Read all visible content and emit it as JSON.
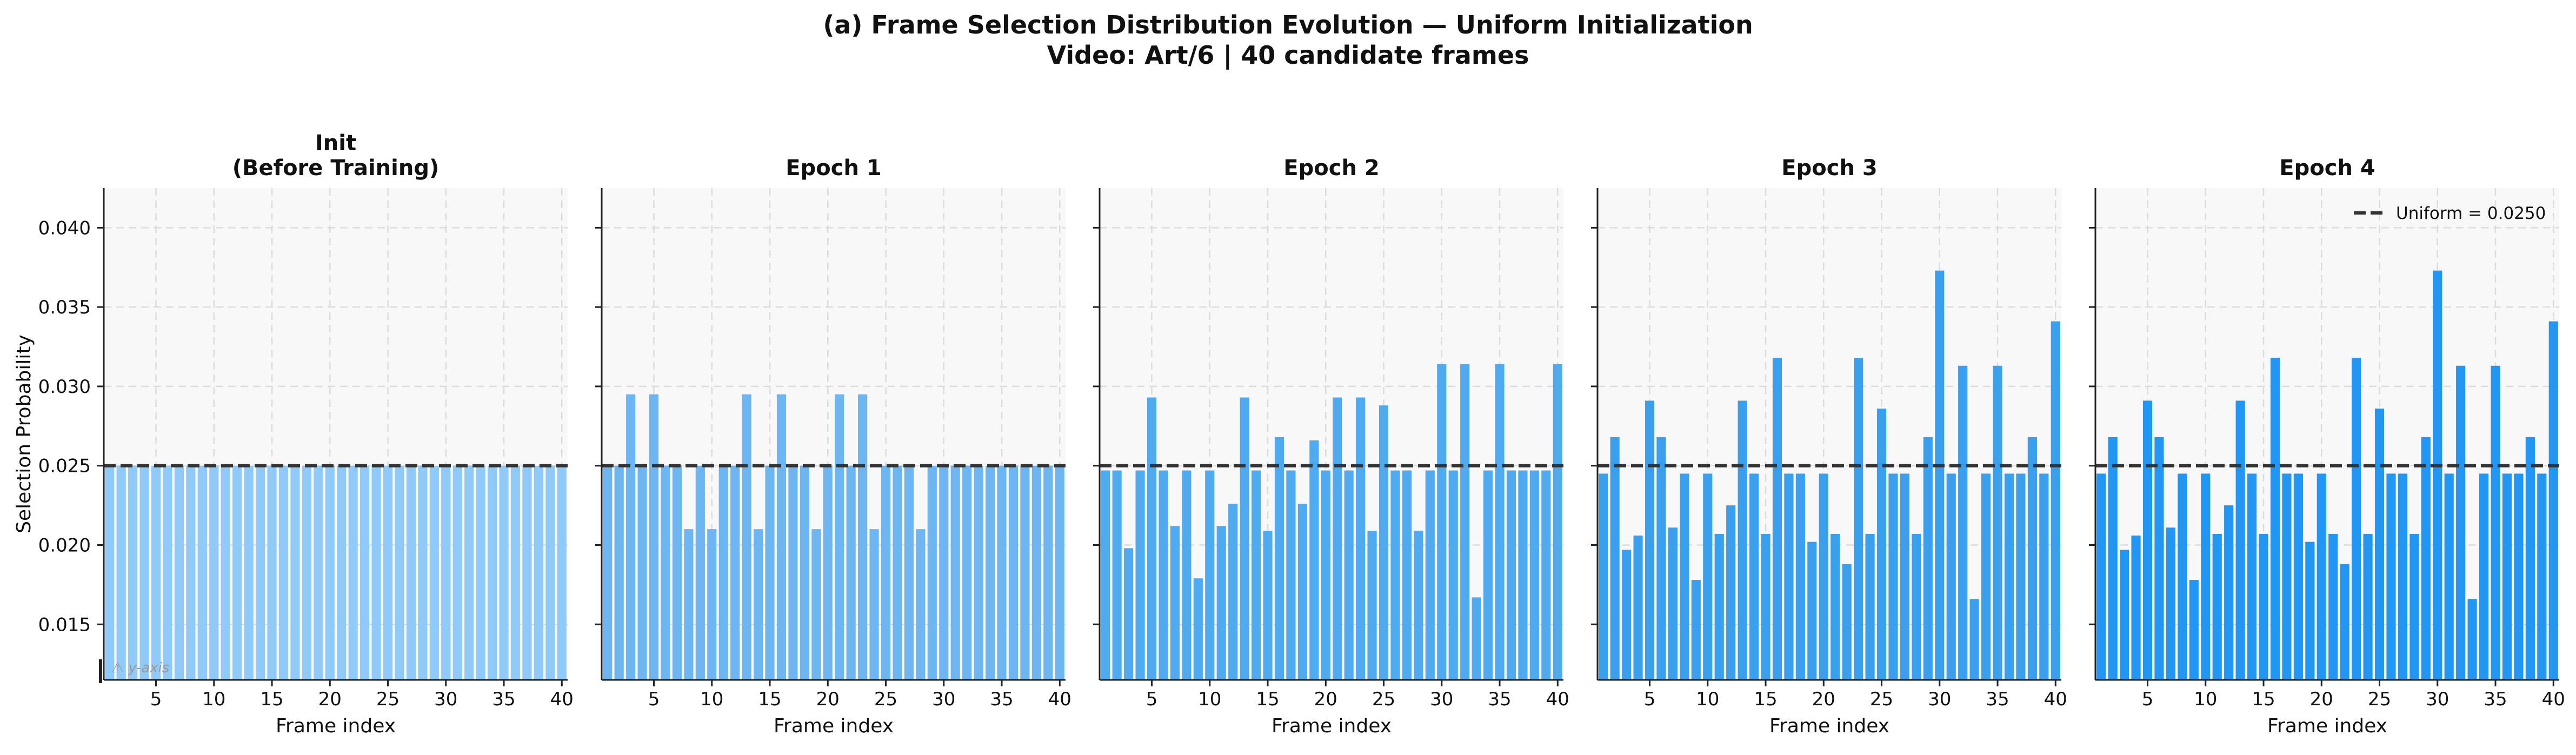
{
  "figure": {
    "title_line1": "(a) Frame Selection Distribution Evolution — Uniform Initialization",
    "title_line2": "Video: Art/6  |  40 candidate frames"
  },
  "chart_data": [
    {
      "type": "bar",
      "title": "Init\n(Before Training)",
      "xlabel": "Frame index",
      "ylabel": "Selection Probability",
      "ylim": [
        0.0115,
        0.0425
      ],
      "xlim": [
        0.5,
        40.5
      ],
      "x_ticks": [
        5,
        10,
        15,
        20,
        25,
        30,
        35,
        40
      ],
      "y_ticks": [
        0.015,
        0.02,
        0.025,
        0.03,
        0.035,
        0.04
      ],
      "y_tick_labels": [
        "0.015",
        "0.020",
        "0.025",
        "0.030",
        "0.035",
        "0.040"
      ],
      "grid": true,
      "reference_line": {
        "value": 0.025,
        "style": "dashed"
      },
      "annotation": "⚠ y-axis",
      "bar_color": "#90caf9",
      "categories": [
        1,
        2,
        3,
        4,
        5,
        6,
        7,
        8,
        9,
        10,
        11,
        12,
        13,
        14,
        15,
        16,
        17,
        18,
        19,
        20,
        21,
        22,
        23,
        24,
        25,
        26,
        27,
        28,
        29,
        30,
        31,
        32,
        33,
        34,
        35,
        36,
        37,
        38,
        39,
        40
      ],
      "values": [
        0.025,
        0.025,
        0.025,
        0.025,
        0.025,
        0.025,
        0.025,
        0.025,
        0.025,
        0.025,
        0.025,
        0.025,
        0.025,
        0.025,
        0.025,
        0.025,
        0.025,
        0.025,
        0.025,
        0.025,
        0.025,
        0.025,
        0.025,
        0.025,
        0.025,
        0.025,
        0.025,
        0.025,
        0.025,
        0.025,
        0.025,
        0.025,
        0.025,
        0.025,
        0.025,
        0.025,
        0.025,
        0.025,
        0.025,
        0.025
      ]
    },
    {
      "type": "bar",
      "title": "Epoch 1",
      "xlabel": "Frame index",
      "ylim": [
        0.0115,
        0.0425
      ],
      "xlim": [
        0.5,
        40.5
      ],
      "x_ticks": [
        5,
        10,
        15,
        20,
        25,
        30,
        35,
        40
      ],
      "grid": true,
      "reference_line": {
        "value": 0.025,
        "style": "dashed"
      },
      "bar_color": "#6db6f2",
      "categories": [
        1,
        2,
        3,
        4,
        5,
        6,
        7,
        8,
        9,
        10,
        11,
        12,
        13,
        14,
        15,
        16,
        17,
        18,
        19,
        20,
        21,
        22,
        23,
        24,
        25,
        26,
        27,
        28,
        29,
        30,
        31,
        32,
        33,
        34,
        35,
        36,
        37,
        38,
        39,
        40
      ],
      "values": [
        0.025,
        0.025,
        0.0295,
        0.025,
        0.0295,
        0.025,
        0.025,
        0.021,
        0.025,
        0.021,
        0.025,
        0.025,
        0.0295,
        0.021,
        0.025,
        0.0295,
        0.025,
        0.025,
        0.021,
        0.025,
        0.0295,
        0.025,
        0.0295,
        0.021,
        0.025,
        0.025,
        0.025,
        0.021,
        0.025,
        0.025,
        0.025,
        0.025,
        0.025,
        0.025,
        0.025,
        0.025,
        0.025,
        0.025,
        0.025,
        0.025
      ]
    },
    {
      "type": "bar",
      "title": "Epoch 2",
      "xlabel": "Frame index",
      "ylim": [
        0.0115,
        0.0425
      ],
      "xlim": [
        0.5,
        40.5
      ],
      "x_ticks": [
        5,
        10,
        15,
        20,
        25,
        30,
        35,
        40
      ],
      "grid": true,
      "reference_line": {
        "value": 0.025,
        "style": "dashed"
      },
      "bar_color": "#50aaf0",
      "categories": [
        1,
        2,
        3,
        4,
        5,
        6,
        7,
        8,
        9,
        10,
        11,
        12,
        13,
        14,
        15,
        16,
        17,
        18,
        19,
        20,
        21,
        22,
        23,
        24,
        25,
        26,
        27,
        28,
        29,
        30,
        31,
        32,
        33,
        34,
        35,
        36,
        37,
        38,
        39,
        40
      ],
      "values": [
        0.0247,
        0.0247,
        0.0198,
        0.0247,
        0.0293,
        0.0247,
        0.0212,
        0.0247,
        0.0179,
        0.0247,
        0.0212,
        0.0226,
        0.0293,
        0.0247,
        0.0209,
        0.0268,
        0.0247,
        0.0226,
        0.0266,
        0.0247,
        0.0293,
        0.0247,
        0.0293,
        0.0209,
        0.0288,
        0.0247,
        0.0247,
        0.0209,
        0.0247,
        0.0314,
        0.0247,
        0.0314,
        0.0167,
        0.0247,
        0.0314,
        0.0247,
        0.0247,
        0.0247,
        0.0247,
        0.0314
      ]
    },
    {
      "type": "bar",
      "title": "Epoch 3",
      "xlabel": "Frame index",
      "ylim": [
        0.0115,
        0.0425
      ],
      "xlim": [
        0.5,
        40.5
      ],
      "x_ticks": [
        5,
        10,
        15,
        20,
        25,
        30,
        35,
        40
      ],
      "grid": true,
      "reference_line": {
        "value": 0.025,
        "style": "dashed"
      },
      "bar_color": "#3aa0ee",
      "categories": [
        1,
        2,
        3,
        4,
        5,
        6,
        7,
        8,
        9,
        10,
        11,
        12,
        13,
        14,
        15,
        16,
        17,
        18,
        19,
        20,
        21,
        22,
        23,
        24,
        25,
        26,
        27,
        28,
        29,
        30,
        31,
        32,
        33,
        34,
        35,
        36,
        37,
        38,
        39,
        40
      ],
      "values": [
        0.0245,
        0.0268,
        0.0197,
        0.0206,
        0.0291,
        0.0268,
        0.0211,
        0.0245,
        0.0178,
        0.0245,
        0.0207,
        0.0225,
        0.0291,
        0.0245,
        0.0207,
        0.0318,
        0.0245,
        0.0245,
        0.0202,
        0.0245,
        0.0207,
        0.0188,
        0.0318,
        0.0207,
        0.0286,
        0.0245,
        0.0245,
        0.0207,
        0.0268,
        0.0373,
        0.0245,
        0.0313,
        0.0166,
        0.0245,
        0.0313,
        0.0245,
        0.0245,
        0.0268,
        0.0245,
        0.0341
      ]
    },
    {
      "type": "bar",
      "title": "Epoch 4",
      "xlabel": "Frame index",
      "ylim": [
        0.0115,
        0.0425
      ],
      "xlim": [
        0.5,
        40.5
      ],
      "x_ticks": [
        5,
        10,
        15,
        20,
        25,
        30,
        35,
        40
      ],
      "grid": true,
      "reference_line": {
        "value": 0.025,
        "style": "dashed"
      },
      "legend": {
        "label": "Uniform = 0.0250",
        "position": "top-right"
      },
      "bar_color": "#2196f3",
      "categories": [
        1,
        2,
        3,
        4,
        5,
        6,
        7,
        8,
        9,
        10,
        11,
        12,
        13,
        14,
        15,
        16,
        17,
        18,
        19,
        20,
        21,
        22,
        23,
        24,
        25,
        26,
        27,
        28,
        29,
        30,
        31,
        32,
        33,
        34,
        35,
        36,
        37,
        38,
        39,
        40
      ],
      "values": [
        0.0245,
        0.0268,
        0.0197,
        0.0206,
        0.0291,
        0.0268,
        0.0211,
        0.0245,
        0.0178,
        0.0245,
        0.0207,
        0.0225,
        0.0291,
        0.0245,
        0.0207,
        0.0318,
        0.0245,
        0.0245,
        0.0202,
        0.0245,
        0.0207,
        0.0188,
        0.0318,
        0.0207,
        0.0286,
        0.0245,
        0.0245,
        0.0207,
        0.0268,
        0.0373,
        0.0245,
        0.0313,
        0.0166,
        0.0245,
        0.0313,
        0.0245,
        0.0245,
        0.0268,
        0.0245,
        0.0341
      ]
    }
  ]
}
